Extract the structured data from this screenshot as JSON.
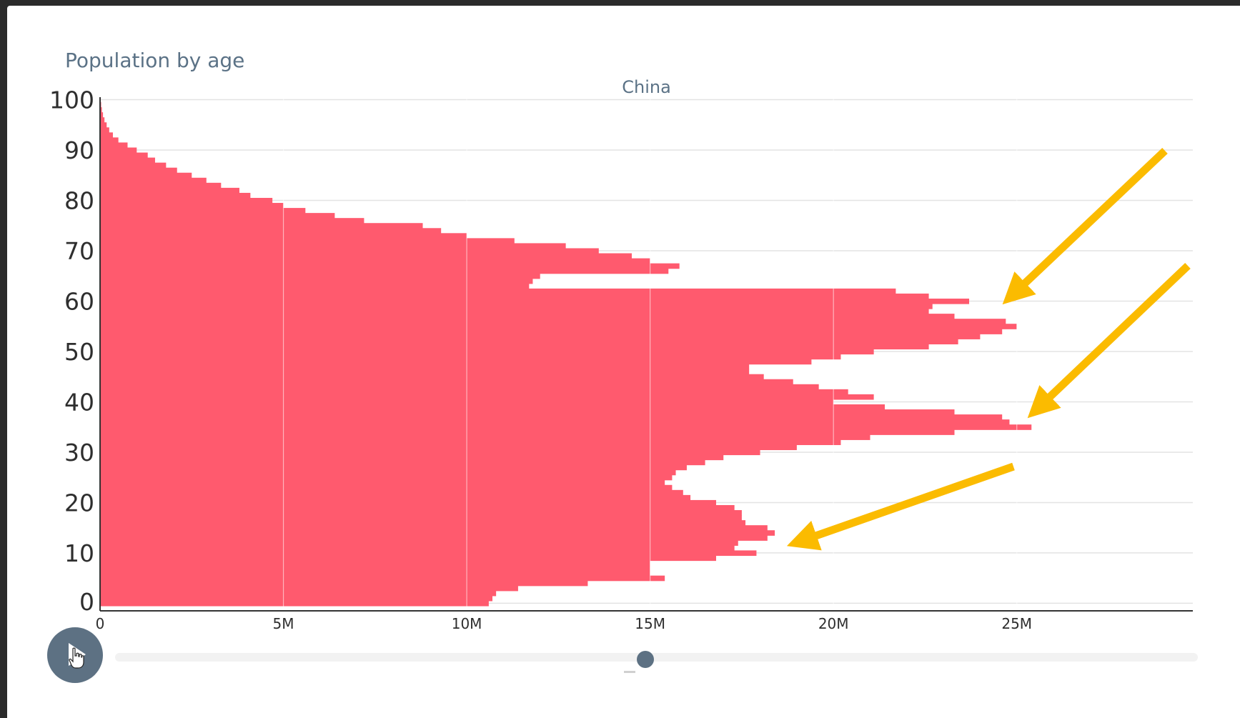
{
  "header": {
    "title": "Population by age"
  },
  "controls": {
    "play_icon": "play-icon",
    "timeline_progress": 0.49
  },
  "colors": {
    "bar": "#ff5a6e",
    "arrow": "#fbbb00",
    "grid": "#e3e3e3",
    "text": "#2e2e2e",
    "accent": "#5d7183"
  },
  "annotations": [
    {
      "type": "arrow",
      "icon": "arrow-icon",
      "points_to_age": 61
    },
    {
      "type": "arrow",
      "icon": "arrow-icon",
      "points_to_age": 38
    },
    {
      "type": "arrow",
      "icon": "arrow-icon",
      "points_to_age": 12
    }
  ],
  "chart_data": {
    "type": "bar",
    "orientation": "horizontal",
    "title": "",
    "subtitle": "China",
    "xlabel": "",
    "ylabel": "",
    "xlim": [
      0,
      29.8
    ],
    "ylim": [
      -1.5,
      100.5
    ],
    "x_unit": "M",
    "x_ticks": [
      {
        "value": 0,
        "label": "0"
      },
      {
        "value": 5,
        "label": "5M"
      },
      {
        "value": 10,
        "label": "10M"
      },
      {
        "value": 15,
        "label": "15M"
      },
      {
        "value": 20,
        "label": "20M"
      },
      {
        "value": 25,
        "label": "25M"
      }
    ],
    "y_ticks": [
      0,
      10,
      20,
      30,
      40,
      50,
      60,
      70,
      80,
      90,
      100
    ],
    "grid": true,
    "categories": [
      0,
      1,
      2,
      3,
      4,
      5,
      6,
      7,
      8,
      9,
      10,
      11,
      12,
      13,
      14,
      15,
      16,
      17,
      18,
      19,
      20,
      21,
      22,
      23,
      24,
      25,
      26,
      27,
      28,
      29,
      30,
      31,
      32,
      33,
      34,
      35,
      36,
      37,
      38,
      39,
      40,
      41,
      42,
      43,
      44,
      45,
      46,
      47,
      48,
      49,
      50,
      51,
      52,
      53,
      54,
      55,
      56,
      57,
      58,
      59,
      60,
      61,
      62,
      63,
      64,
      65,
      66,
      67,
      68,
      69,
      70,
      71,
      72,
      73,
      74,
      75,
      76,
      77,
      78,
      79,
      80,
      81,
      82,
      83,
      84,
      85,
      86,
      87,
      88,
      89,
      90,
      91,
      92,
      93,
      94,
      95,
      96,
      97,
      98,
      99,
      100
    ],
    "values": [
      10.6,
      10.7,
      10.8,
      11.4,
      13.3,
      15.4,
      15.0,
      15.0,
      15.0,
      16.8,
      17.9,
      17.3,
      17.4,
      18.2,
      18.4,
      18.2,
      17.6,
      17.5,
      17.5,
      17.3,
      16.8,
      16.1,
      15.9,
      15.6,
      15.4,
      15.6,
      15.7,
      16.0,
      16.5,
      17.0,
      18.0,
      19.0,
      20.2,
      21.0,
      23.3,
      25.4,
      24.8,
      24.6,
      23.3,
      21.4,
      20.0,
      21.1,
      20.4,
      19.6,
      18.9,
      18.1,
      17.7,
      17.7,
      19.4,
      20.2,
      21.1,
      22.6,
      23.4,
      24.0,
      24.6,
      25.0,
      24.7,
      23.3,
      22.6,
      22.7,
      23.7,
      22.6,
      21.7,
      11.7,
      11.8,
      12.0,
      15.5,
      15.8,
      15.0,
      14.5,
      13.6,
      12.7,
      11.3,
      10.0,
      9.3,
      8.8,
      7.2,
      6.4,
      5.6,
      5.0,
      4.7,
      4.1,
      3.8,
      3.3,
      2.9,
      2.5,
      2.1,
      1.8,
      1.5,
      1.3,
      1.0,
      0.75,
      0.5,
      0.35,
      0.25,
      0.18,
      0.12,
      0.08,
      0.05,
      0.03,
      0.02
    ]
  }
}
